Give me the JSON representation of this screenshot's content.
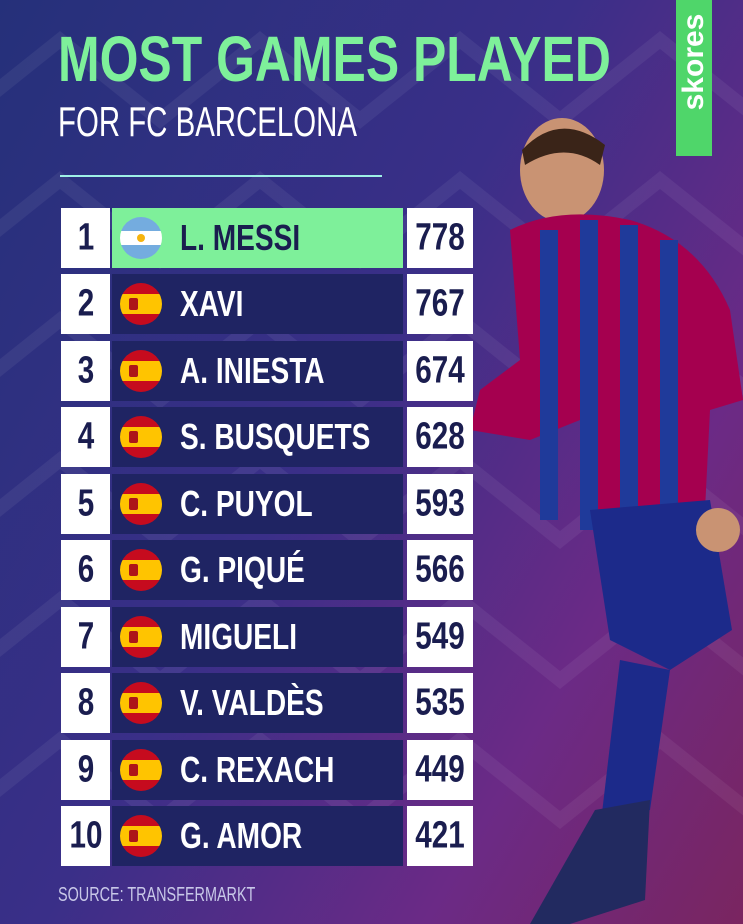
{
  "header": {
    "title": "MOST GAMES PLAYED",
    "subtitle": "FOR FC BARCELONA"
  },
  "brand": "skores",
  "table": {
    "rows": [
      [
        1,
        "L. MESSI",
        778
      ],
      [
        2,
        "XAVI",
        767
      ],
      [
        3,
        "A. INIESTA",
        674
      ],
      [
        4,
        "S. BUSQUETS",
        628
      ],
      [
        5,
        "C. PUYOL",
        593
      ],
      [
        6,
        "G. PIQUÉ",
        566
      ],
      [
        7,
        "MIGUELI",
        549
      ],
      [
        8,
        "V. VALDÈS",
        535
      ],
      [
        9,
        "C. REXACH",
        449
      ],
      [
        10,
        "G. AMOR",
        421
      ]
    ]
  },
  "footer": "SOURCE: TRANSFERMARKT"
}
